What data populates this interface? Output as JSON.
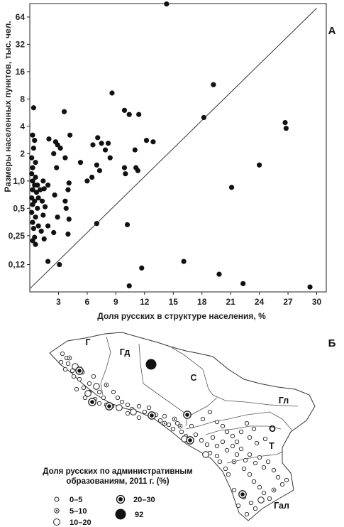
{
  "chart_data": [
    {
      "type": "scatter",
      "panel_label": "А",
      "xlabel": "Доля русских в структуре населения, %",
      "ylabel": "Размеры населенных пунктов, тыс. чел.",
      "xlim": [
        0,
        31
      ],
      "ylim": [
        0.06,
        90
      ],
      "y_scale": "log2",
      "x_ticks": [
        3,
        6,
        9,
        12,
        15,
        18,
        21,
        24,
        27,
        30
      ],
      "y_ticks": [
        {
          "value": 0.12,
          "label": "0,12"
        },
        {
          "value": 0.25,
          "label": "0,25"
        },
        {
          "value": 0.5,
          "label": "0,5"
        },
        {
          "value": 1,
          "label": "1,0"
        },
        {
          "value": 2,
          "label": "2"
        },
        {
          "value": 4,
          "label": "4"
        },
        {
          "value": 8,
          "label": "8"
        },
        {
          "value": 16,
          "label": "16"
        },
        {
          "value": 32,
          "label": "32"
        },
        {
          "value": 64,
          "label": "64"
        }
      ],
      "reference_line": {
        "from": [
          0,
          0.065
        ],
        "to": [
          30,
          80
        ]
      },
      "points": [
        [
          14.3,
          89
        ],
        [
          8.6,
          9.3
        ],
        [
          9.9,
          6.0
        ],
        [
          10.4,
          5.4
        ],
        [
          11.4,
          5.4
        ],
        [
          3.6,
          5.8
        ],
        [
          0.4,
          6.4
        ],
        [
          19.2,
          11.5
        ],
        [
          18.2,
          5.0
        ],
        [
          26.7,
          4.4
        ],
        [
          26.8,
          3.8
        ],
        [
          0.3,
          3.2
        ],
        [
          4.2,
          3.2
        ],
        [
          7.1,
          3.0
        ],
        [
          7.5,
          2.6
        ],
        [
          8.2,
          2.6
        ],
        [
          6.6,
          2.5
        ],
        [
          2.0,
          2.9
        ],
        [
          12.2,
          2.8
        ],
        [
          12.9,
          2.7
        ],
        [
          0.5,
          2.8
        ],
        [
          2.7,
          2.7
        ],
        [
          2.9,
          2.5
        ],
        [
          3.2,
          2.3
        ],
        [
          7.9,
          2.2
        ],
        [
          11.0,
          2.2
        ],
        [
          2.5,
          2.0
        ],
        [
          3.7,
          1.8
        ],
        [
          5.3,
          1.6
        ],
        [
          8.4,
          1.8
        ],
        [
          0.4,
          2.3
        ],
        [
          0.2,
          1.8
        ],
        [
          0.6,
          1.6
        ],
        [
          0.3,
          1.4
        ],
        [
          7.0,
          1.5
        ],
        [
          7.3,
          1.3
        ],
        [
          11.1,
          1.4
        ],
        [
          11.3,
          1.3
        ],
        [
          9.9,
          1.4
        ],
        [
          10.0,
          1.2
        ],
        [
          6.5,
          1.1
        ],
        [
          6.0,
          1.0
        ],
        [
          2.8,
          1.4
        ],
        [
          24.0,
          1.5
        ],
        [
          0.2,
          1.2
        ],
        [
          0.6,
          1.1
        ],
        [
          0.3,
          1.0
        ],
        [
          0.5,
          0.9
        ],
        [
          0.8,
          0.9
        ],
        [
          1.4,
          1.0
        ],
        [
          1.9,
          0.9
        ],
        [
          4.1,
          0.95
        ],
        [
          21.1,
          0.85
        ],
        [
          0.3,
          0.8
        ],
        [
          0.7,
          0.75
        ],
        [
          1.1,
          0.8
        ],
        [
          1.5,
          0.82
        ],
        [
          4.0,
          0.8
        ],
        [
          2.6,
          0.7
        ],
        [
          0.2,
          0.65
        ],
        [
          0.5,
          0.6
        ],
        [
          0.9,
          0.65
        ],
        [
          1.3,
          0.6
        ],
        [
          3.7,
          0.6
        ],
        [
          0.3,
          0.55
        ],
        [
          0.8,
          0.5
        ],
        [
          1.6,
          0.52
        ],
        [
          3.8,
          0.5
        ],
        [
          0.2,
          0.45
        ],
        [
          0.6,
          0.4
        ],
        [
          1.4,
          0.42
        ],
        [
          2.9,
          0.4
        ],
        [
          4.1,
          0.38
        ],
        [
          0.3,
          0.35
        ],
        [
          0.9,
          0.32
        ],
        [
          1.9,
          0.32
        ],
        [
          7.0,
          0.34
        ],
        [
          10.2,
          0.33
        ],
        [
          0.4,
          0.3
        ],
        [
          1.2,
          0.28
        ],
        [
          2.5,
          0.27
        ],
        [
          4.0,
          0.26
        ],
        [
          0.5,
          0.24
        ],
        [
          1.5,
          0.23
        ],
        [
          0.3,
          0.22
        ],
        [
          0.6,
          0.2
        ],
        [
          1.9,
          0.13
        ],
        [
          3.1,
          0.12
        ],
        [
          11.7,
          0.11
        ],
        [
          16.1,
          0.13
        ],
        [
          19.8,
          0.094
        ],
        [
          22.3,
          0.074
        ],
        [
          10.4,
          0.07
        ],
        [
          29.3,
          0.068
        ]
      ]
    },
    {
      "type": "map",
      "panel_label": "Б",
      "region_labels": [
        "Г",
        "Гд",
        "С",
        "Гл",
        "О",
        "Т",
        "Гал"
      ],
      "legend": {
        "title_line1": "Доля русских по административным",
        "title_line2": "образованиям, 2011 г. (%)",
        "items": [
          {
            "label": "0–5",
            "symbol": "small-open"
          },
          {
            "label": "5–10",
            "symbol": "small-dotted"
          },
          {
            "label": "10–20",
            "symbol": "large-open"
          },
          {
            "label": "20–30",
            "symbol": "large-ringed"
          },
          {
            "label": "92",
            "symbol": "large-filled"
          }
        ]
      }
    }
  ]
}
